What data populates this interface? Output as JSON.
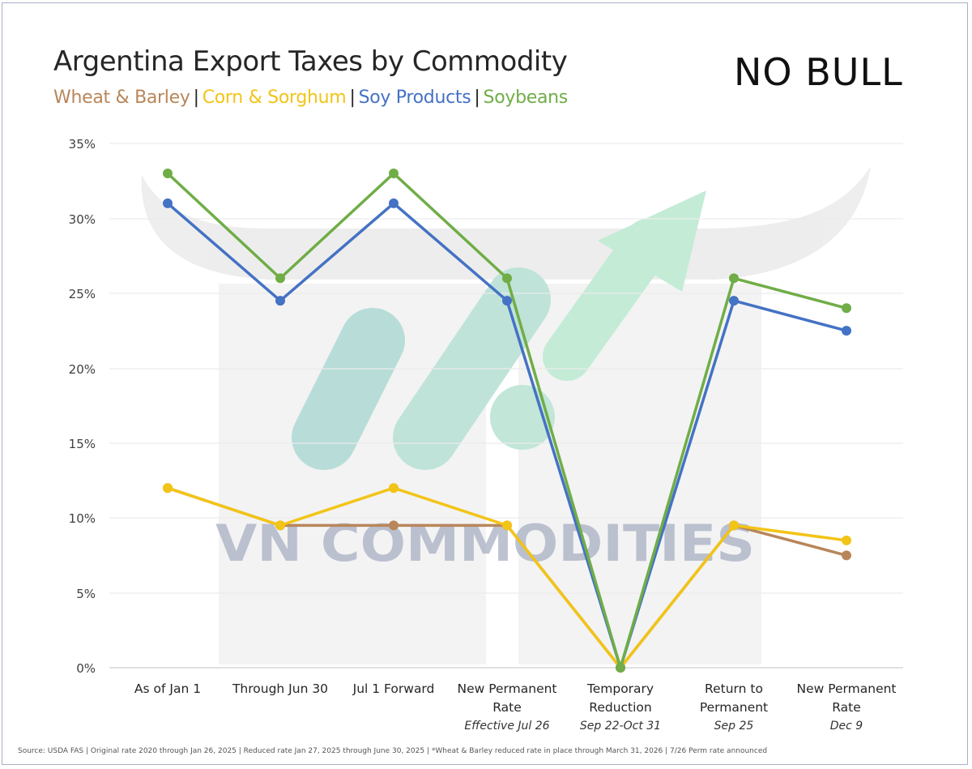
{
  "header": {
    "title": "Argentina Export Taxes by Commodity",
    "legend": [
      {
        "label": "Wheat & Barley",
        "color": "#b8865a"
      },
      {
        "label": "Corn & Sorghum",
        "color": "#f2c417"
      },
      {
        "label": "Soy Products",
        "color": "#4472c4"
      },
      {
        "label": "Soybeans",
        "color": "#70ad47"
      }
    ],
    "separator": "|",
    "logo_text": "NO BULL"
  },
  "watermark": {
    "text": "VN COMMODITIES"
  },
  "x_labels": [
    {
      "line1": "As of Jan 1",
      "line2": "",
      "sub": ""
    },
    {
      "line1": "Through Jun 30",
      "line2": "",
      "sub": ""
    },
    {
      "line1": "Jul 1 Forward",
      "line2": "",
      "sub": ""
    },
    {
      "line1": "New Permanent",
      "line2": "Rate",
      "sub": "Effective Jul 26"
    },
    {
      "line1": "Temporary",
      "line2": "Reduction",
      "sub": "Sep 22-Oct 31"
    },
    {
      "line1": "Return to",
      "line2": "Permanent",
      "sub": "Sep 25"
    },
    {
      "line1": "New Permanent",
      "line2": "Rate",
      "sub": "Dec 9"
    }
  ],
  "y_ticks": [
    "0%",
    "5%",
    "10%",
    "15%",
    "20%",
    "25%",
    "30%",
    "35%"
  ],
  "footer": {
    "source": "Source: USDA FAS | Original rate 2020 through Jan 26, 2025 | Reduced rate Jan 27, 2025 through June 30, 2025 | *Wheat & Barley reduced rate in place through March 31, 2026 | 7/26 Perm rate announced"
  },
  "chart_data": {
    "type": "line",
    "title": "Argentina Export Taxes by Commodity",
    "categories": [
      "As of Jan 1",
      "Through Jun 30",
      "Jul 1 Forward",
      "New Permanent Rate (Effective Jul 26)",
      "Temporary Reduction (Sep 22-Oct 31)",
      "Return to Permanent (Sep 25)",
      "New Permanent Rate (Dec 9)"
    ],
    "series": [
      {
        "name": "Wheat & Barley",
        "color": "#b8865a",
        "values": [
          12,
          9.5,
          9.5,
          9.5,
          0,
          9.5,
          7.5
        ]
      },
      {
        "name": "Corn & Sorghum",
        "color": "#f2c417",
        "values": [
          12,
          9.5,
          12,
          9.5,
          0,
          9.5,
          8.5
        ]
      },
      {
        "name": "Soy Products",
        "color": "#4472c4",
        "values": [
          31,
          24.5,
          31,
          24.5,
          0,
          24.5,
          22.5
        ]
      },
      {
        "name": "Soybeans",
        "color": "#70ad47",
        "values": [
          33,
          26,
          33,
          26,
          0,
          26,
          24
        ]
      }
    ],
    "xlabel": "",
    "ylabel": "",
    "ylim": [
      0,
      35
    ],
    "y_tick_step": 5,
    "y_format": "percent",
    "grid": true,
    "legend_position": "subtitle"
  }
}
